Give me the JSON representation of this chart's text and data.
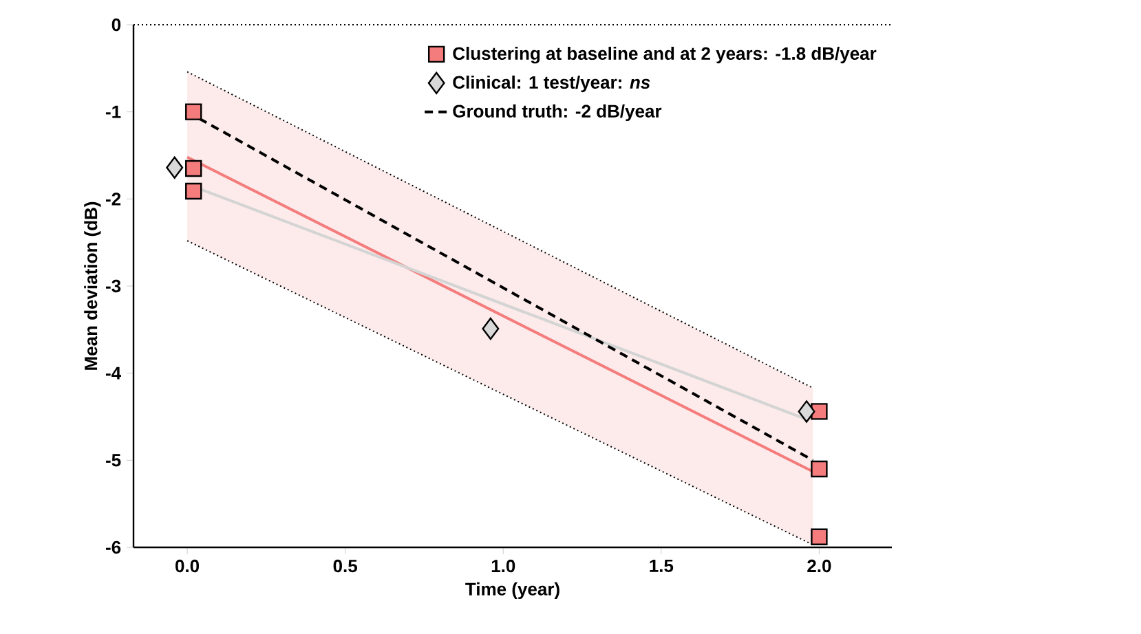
{
  "chart_data": {
    "type": "scatter",
    "xlabel": "Time (year)",
    "ylabel": "Mean deviation (dB)",
    "xlim": [
      -0.17,
      2.23
    ],
    "ylim": [
      -6,
      0
    ],
    "xticks": [
      {
        "value": 0,
        "label": "0.0"
      },
      0.5,
      {
        "value": 1,
        "label": "1.0"
      },
      1.5,
      {
        "value": 2,
        "label": "2.0"
      }
    ],
    "yticks": [
      -6,
      -5,
      -4,
      -3,
      -2,
      -1,
      0
    ],
    "legend": "top right",
    "grid": false,
    "ref_lines": [
      {
        "axis": "y",
        "value": 0,
        "color": "#000000",
        "line_style": "dotted"
      }
    ],
    "series": [
      {
        "type": "line",
        "color": "#f47c7c",
        "x": [
          0,
          1.98
        ],
        "values": [
          -1.52,
          -5.13
        ],
        "lower": [
          -2.48,
          -5.97
        ],
        "upper": [
          -0.54,
          -4.17
        ]
      },
      {
        "type": "line",
        "color": "#000000",
        "line_style": "dotted",
        "x": [
          0,
          1.98
        ],
        "values": [
          -0.54,
          -4.17
        ]
      },
      {
        "type": "line",
        "color": "#000000",
        "line_style": "dotted",
        "x": [
          0,
          1.98
        ],
        "values": [
          -2.48,
          -5.97
        ]
      },
      {
        "type": "line",
        "color": "#d4d4d4",
        "x": [
          0,
          1.96
        ],
        "values": [
          -1.83,
          -4.53
        ]
      },
      {
        "name": "Clustering at baseline and at 2 years: -1.8 dB/year",
        "color": "#f47c7c",
        "marker": "square",
        "x": [
          0.02,
          0.02,
          0.02,
          2.0,
          2.0,
          2.0
        ],
        "values": [
          -1.0,
          -1.65,
          -1.91,
          -4.44,
          -5.1,
          -5.88
        ]
      },
      {
        "name": "Clinical: 1 test/year: *ns*",
        "color": "#d9d9d9",
        "marker": "diamond",
        "x": [
          -0.04,
          0.96,
          1.96
        ],
        "values": [
          -1.64,
          -3.49,
          -4.44
        ]
      },
      {
        "type": "line",
        "name": "Ground truth: -2 dB/year",
        "color": "#000000",
        "line_style": "dashed",
        "x": [
          0,
          1.98
        ],
        "values": [
          -1.0,
          -5.0
        ]
      }
    ]
  }
}
